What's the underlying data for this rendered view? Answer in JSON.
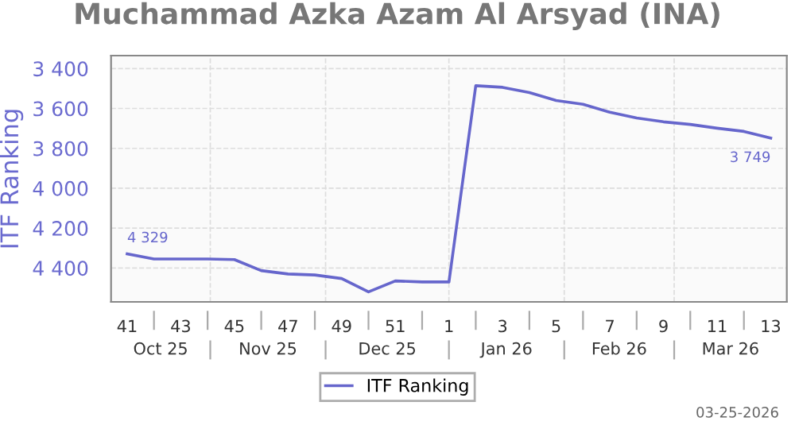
{
  "chart_data": {
    "type": "line",
    "title": "Muchammad Azka Azam Al Arsyad (INA)",
    "ylabel": "ITF Ranking",
    "categories": [
      "41",
      null,
      "43",
      null,
      "45",
      null,
      "47",
      null,
      "49",
      null,
      "51",
      null,
      "1",
      null,
      "3",
      null,
      "5",
      null,
      "7",
      null,
      "9",
      null,
      "11",
      null,
      "13"
    ],
    "series": [
      {
        "name": "ITF Ranking",
        "color": "#6666cc",
        "values": [
          4329,
          4355,
          4355,
          4355,
          4358,
          4413,
          4430,
          4435,
          4453,
          4520,
          4465,
          4470,
          4470,
          3486,
          3494,
          3520,
          3560,
          3579,
          3619,
          3648,
          3667,
          3680,
          3699,
          3715,
          3749
        ],
        "value_labels": [
          "4 329",
          null,
          null,
          null,
          null,
          null,
          null,
          null,
          null,
          null,
          null,
          null,
          null,
          null,
          null,
          null,
          null,
          null,
          null,
          null,
          null,
          null,
          null,
          null,
          "3 749"
        ]
      }
    ],
    "ylim": [
      4570,
      3335
    ],
    "yticks": [
      {
        "value": 3400,
        "label": "3 400"
      },
      {
        "value": 3600,
        "label": "3 600"
      },
      {
        "value": 3800,
        "label": "3 800"
      },
      {
        "value": 4000,
        "label": "4 000"
      },
      {
        "value": 4200,
        "label": "4 200"
      },
      {
        "value": 4400,
        "label": "4 400"
      }
    ],
    "annotations": [
      "Oct 25",
      "Nov 25",
      "Dec 25",
      "Jan 26",
      "Feb 26",
      "Mar 26",
      "03-25-2026"
    ],
    "grid": true,
    "legend": "bottom",
    "marker": "none",
    "line_style": "solid"
  }
}
